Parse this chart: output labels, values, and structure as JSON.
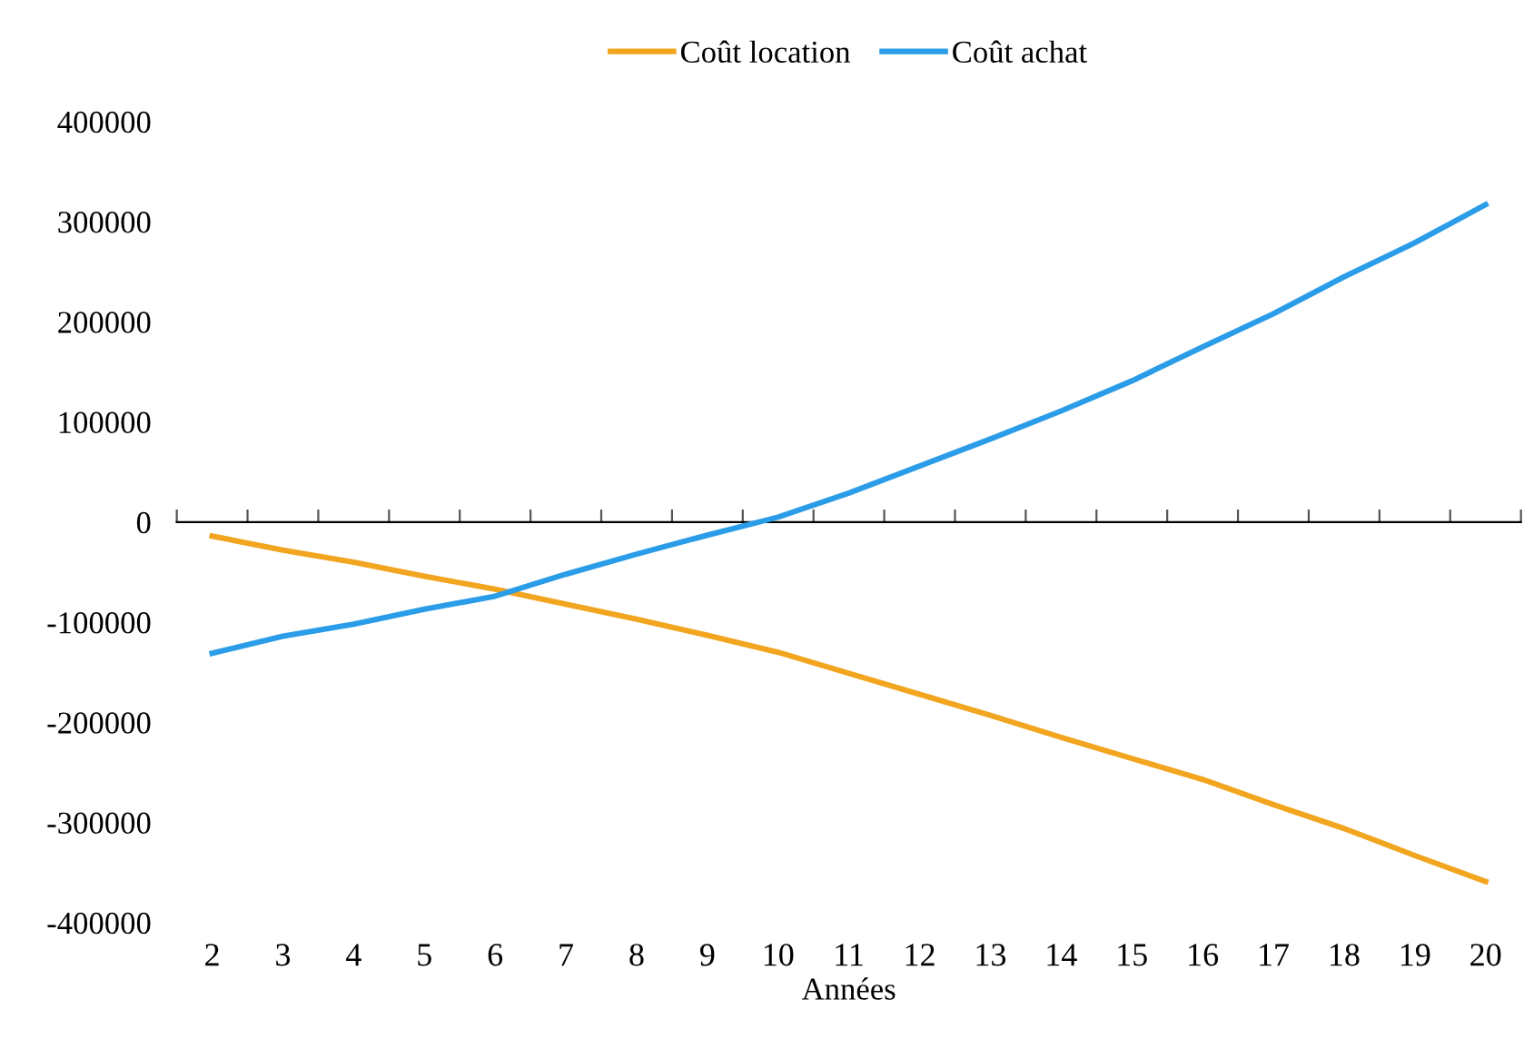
{
  "chart_data": {
    "type": "line",
    "xlabel": "Années",
    "categories": [
      "2",
      "3",
      "4",
      "5",
      "6",
      "7",
      "8",
      "9",
      "10",
      "11",
      "12",
      "13",
      "14",
      "15",
      "16",
      "17",
      "18",
      "19",
      "20"
    ],
    "series": [
      {
        "name": "Coût location",
        "color": "#f2a51f",
        "values": [
          -14000,
          -28000,
          -40000,
          -54000,
          -67000,
          -82000,
          -97000,
          -113000,
          -130000,
          -151000,
          -172000,
          -193000,
          -215000,
          -236000,
          -257000,
          -282000,
          -306000,
          -333000,
          -359000
        ]
      },
      {
        "name": "Coût achat",
        "color": "#2b9de8",
        "values": [
          -131000,
          -114000,
          -102000,
          -87000,
          -74000,
          -52000,
          -32000,
          -13000,
          5000,
          29000,
          56000,
          83000,
          111000,
          141000,
          175000,
          208000,
          245000,
          279000,
          317000
        ]
      }
    ],
    "ylim": [
      -400000,
      400000
    ],
    "yticks": [
      -400000,
      -300000,
      -200000,
      -100000,
      0,
      100000,
      200000,
      300000,
      400000
    ],
    "legend": "top",
    "marker": "none",
    "line_style": "solid"
  }
}
